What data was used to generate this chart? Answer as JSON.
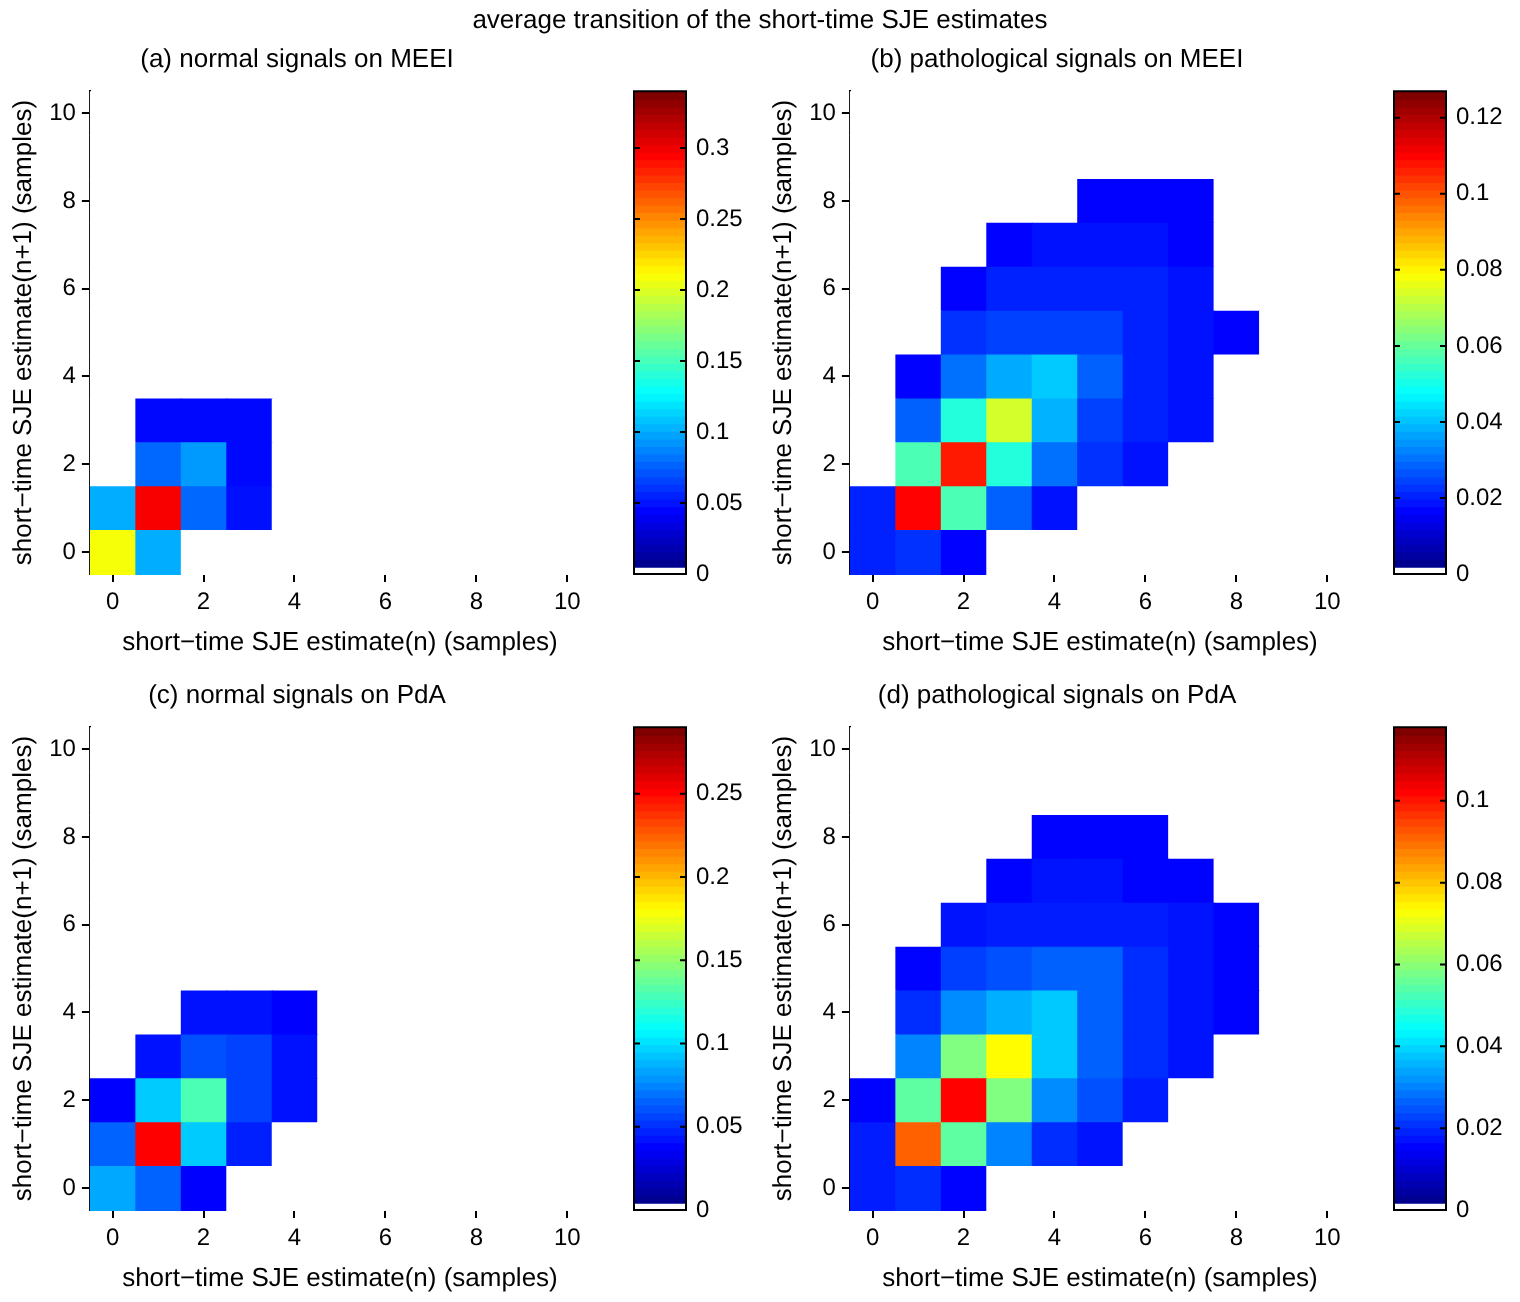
{
  "chart_data": [
    {
      "type": "heatmap",
      "title": "(a) normal signals on MEEI",
      "xlabel": "short−time SJE estimate(n) (samples)",
      "ylabel": "short−time SJE estimate(n+1) (samples)",
      "annotations": [
        "average transition of the short-time SJE estimates"
      ],
      "categories": [
        "0",
        null,
        "2",
        null,
        "4",
        null,
        "6",
        null,
        "8",
        null,
        "10"
      ],
      "y_categories": [
        "10",
        null,
        "8",
        null,
        "6",
        null,
        "4",
        null,
        "2",
        null,
        "0"
      ],
      "cells": [
        [
          0,
          0,
          0,
          0,
          0,
          0,
          0,
          0,
          0,
          0,
          0
        ],
        [
          0,
          0,
          0,
          0,
          0,
          0,
          0,
          0,
          0,
          0,
          0
        ],
        [
          0,
          0,
          0,
          0,
          0,
          0,
          0,
          0,
          0,
          0,
          0
        ],
        [
          0,
          0,
          0,
          0,
          0,
          0,
          0,
          0,
          0,
          0,
          0
        ],
        [
          0,
          0,
          0,
          0,
          0,
          0,
          0,
          0,
          0,
          0,
          0
        ],
        [
          0,
          0,
          0,
          0,
          0,
          0,
          0,
          0,
          0,
          0,
          0
        ],
        [
          0,
          0,
          0,
          0,
          0,
          0,
          0,
          0,
          0,
          0,
          0
        ],
        [
          0,
          0.045,
          0.045,
          0.045,
          0,
          0,
          0,
          0,
          0,
          0,
          0
        ],
        [
          0,
          0.077,
          0.094,
          0.045,
          0,
          0,
          0,
          0,
          0,
          0,
          0
        ],
        [
          0.1,
          0.3,
          0.077,
          0.048,
          0,
          0,
          0,
          0,
          0,
          0,
          0
        ],
        [
          0.21,
          0.1,
          0,
          0,
          0,
          0,
          0,
          0,
          0,
          0,
          0
        ]
      ],
      "clim": [
        0,
        0.34
      ],
      "cticks": [
        0,
        0.05,
        0.1,
        0.15,
        0.2,
        0.25,
        0.3
      ]
    },
    {
      "type": "heatmap",
      "title": "(b) pathological signals on MEEI",
      "xlabel": "short−time SJE estimate(n) (samples)",
      "ylabel": "short−time SJE estimate(n+1) (samples)",
      "categories": [
        "0",
        null,
        "2",
        null,
        "4",
        null,
        "6",
        null,
        "8",
        null,
        "10"
      ],
      "y_categories": [
        "10",
        null,
        "8",
        null,
        "6",
        null,
        "4",
        null,
        "2",
        null,
        "0"
      ],
      "cells": [
        [
          0,
          0,
          0,
          0,
          0,
          0,
          0,
          0,
          0,
          0,
          0
        ],
        [
          0,
          0,
          0,
          0,
          0,
          0,
          0,
          0,
          0,
          0,
          0
        ],
        [
          0,
          0,
          0,
          0,
          0,
          0.016,
          0.016,
          0.016,
          0,
          0,
          0
        ],
        [
          0,
          0,
          0,
          0.016,
          0.018,
          0.018,
          0.018,
          0.016,
          0,
          0,
          0
        ],
        [
          0,
          0,
          0.016,
          0.02,
          0.02,
          0.02,
          0.02,
          0.018,
          0,
          0,
          0
        ],
        [
          0,
          0,
          0.022,
          0.024,
          0.024,
          0.024,
          0.02,
          0.018,
          0.016,
          0,
          0
        ],
        [
          0,
          0.016,
          0.03,
          0.037,
          0.041,
          0.028,
          0.02,
          0.018,
          0,
          0,
          0
        ],
        [
          0,
          0.028,
          0.052,
          0.074,
          0.038,
          0.024,
          0.02,
          0.018,
          0,
          0,
          0
        ],
        [
          0,
          0.057,
          0.108,
          0.052,
          0.03,
          0.022,
          0.018,
          0,
          0,
          0,
          0
        ],
        [
          0.02,
          0.111,
          0.057,
          0.028,
          0.018,
          0,
          0,
          0,
          0,
          0,
          0
        ],
        [
          0.02,
          0.022,
          0.016,
          0,
          0,
          0,
          0,
          0,
          0,
          0,
          0
        ]
      ],
      "clim": [
        0,
        0.127
      ],
      "cticks": [
        0,
        0.02,
        0.04,
        0.06,
        0.08,
        0.1,
        0.12
      ]
    },
    {
      "type": "heatmap",
      "title": "(c) normal signals on PdA",
      "xlabel": "short−time SJE estimate(n) (samples)",
      "ylabel": "short−time SJE estimate(n+1) (samples)",
      "categories": [
        "0",
        null,
        "2",
        null,
        "4",
        null,
        "6",
        null,
        "8",
        null,
        "10"
      ],
      "y_categories": [
        "10",
        null,
        "8",
        null,
        "6",
        null,
        "4",
        null,
        "2",
        null,
        "0"
      ],
      "cells": [
        [
          0,
          0,
          0,
          0,
          0,
          0,
          0,
          0,
          0,
          0,
          0
        ],
        [
          0,
          0,
          0,
          0,
          0,
          0,
          0,
          0,
          0,
          0,
          0
        ],
        [
          0,
          0,
          0,
          0,
          0,
          0,
          0,
          0,
          0,
          0,
          0
        ],
        [
          0,
          0,
          0,
          0,
          0,
          0,
          0,
          0,
          0,
          0,
          0
        ],
        [
          0,
          0,
          0,
          0,
          0,
          0,
          0,
          0,
          0,
          0,
          0
        ],
        [
          0,
          0,
          0,
          0,
          0,
          0,
          0,
          0,
          0,
          0,
          0
        ],
        [
          0,
          0,
          0.041,
          0.041,
          0.036,
          0,
          0,
          0,
          0,
          0,
          0
        ],
        [
          0,
          0.041,
          0.059,
          0.055,
          0.041,
          0,
          0,
          0,
          0,
          0,
          0
        ],
        [
          0.036,
          0.094,
          0.13,
          0.055,
          0.041,
          0,
          0,
          0,
          0,
          0,
          0
        ],
        [
          0.064,
          0.254,
          0.094,
          0.045,
          0,
          0,
          0,
          0,
          0,
          0,
          0
        ],
        [
          0.084,
          0.064,
          0.036,
          0,
          0,
          0,
          0,
          0,
          0,
          0,
          0
        ]
      ],
      "clim": [
        0,
        0.29
      ],
      "cticks": [
        0,
        0.05,
        0.1,
        0.15,
        0.2,
        0.25
      ]
    },
    {
      "type": "heatmap",
      "title": "(d) pathological signals on PdA",
      "xlabel": "short−time SJE estimate(n) (samples)",
      "ylabel": "short−time SJE estimate(n+1) (samples)",
      "categories": [
        "0",
        null,
        "2",
        null,
        "4",
        null,
        "6",
        null,
        "8",
        null,
        "10"
      ],
      "y_categories": [
        "10",
        null,
        "8",
        null,
        "6",
        null,
        "4",
        null,
        "2",
        null,
        "0"
      ],
      "cells": [
        [
          0,
          0,
          0,
          0,
          0,
          0,
          0,
          0,
          0,
          0,
          0
        ],
        [
          0,
          0,
          0,
          0,
          0,
          0,
          0,
          0,
          0,
          0,
          0
        ],
        [
          0,
          0,
          0,
          0,
          0.015,
          0.015,
          0.015,
          0,
          0,
          0,
          0
        ],
        [
          0,
          0,
          0,
          0.015,
          0.017,
          0.017,
          0.015,
          0.015,
          0,
          0,
          0
        ],
        [
          0,
          0,
          0.017,
          0.018,
          0.018,
          0.018,
          0.018,
          0.017,
          0.015,
          0,
          0
        ],
        [
          0,
          0.015,
          0.022,
          0.024,
          0.026,
          0.026,
          0.02,
          0.017,
          0.015,
          0,
          0
        ],
        [
          0,
          0.02,
          0.031,
          0.035,
          0.038,
          0.026,
          0.02,
          0.017,
          0.015,
          0,
          0
        ],
        [
          0,
          0.03,
          0.059,
          0.074,
          0.038,
          0.026,
          0.02,
          0.017,
          0,
          0,
          0
        ],
        [
          0.015,
          0.055,
          0.103,
          0.059,
          0.031,
          0.024,
          0.018,
          0,
          0,
          0,
          0
        ],
        [
          0.018,
          0.092,
          0.055,
          0.03,
          0.02,
          0.017,
          0,
          0,
          0,
          0,
          0
        ],
        [
          0.018,
          0.02,
          0.015,
          0,
          0,
          0,
          0,
          0,
          0,
          0,
          0
        ]
      ],
      "clim": [
        0,
        0.118
      ],
      "cticks": [
        0,
        0.02,
        0.04,
        0.06,
        0.08,
        0.1
      ]
    }
  ]
}
